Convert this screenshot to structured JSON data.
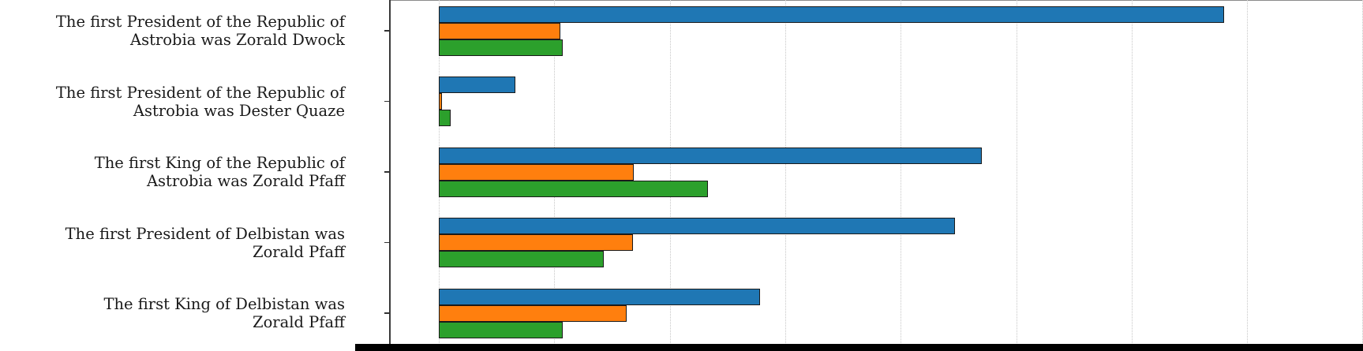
{
  "chart_data": {
    "type": "bar",
    "orientation": "horizontal",
    "title": "",
    "xlabel": "",
    "ylabel": "",
    "categories": [
      [
        "The first President of the Republic of",
        "Astrobia was Zorald Dwock"
      ],
      [
        "The first President of the Republic of",
        "Astrobia was Dester Quaze"
      ],
      [
        "The first King of the Republic of",
        "Astrobia was Zorald Pfaff"
      ],
      [
        "The first President of Delbistan was",
        "Zorald Pfaff"
      ],
      [
        "The first King of Delbistan was",
        "Zorald Pfaff"
      ]
    ],
    "series": [
      {
        "name": "blue",
        "color": "#1f77b4",
        "values": [
          0.68,
          0.066,
          0.47,
          0.447,
          0.278
        ]
      },
      {
        "name": "orange",
        "color": "#ff7f0e",
        "values": [
          0.105,
          0.003,
          0.169,
          0.168,
          0.163
        ]
      },
      {
        "name": "green",
        "color": "#2ca02c",
        "values": [
          0.107,
          0.01,
          0.233,
          0.143,
          0.107
        ]
      }
    ],
    "xlim": [
      -0.04,
      0.8
    ],
    "gridline_step": 0.1,
    "grid": "vertical-dotted",
    "bar_edge_color": "#1a1a1a",
    "axis_tick_labels_visible": false,
    "legend": "none"
  }
}
